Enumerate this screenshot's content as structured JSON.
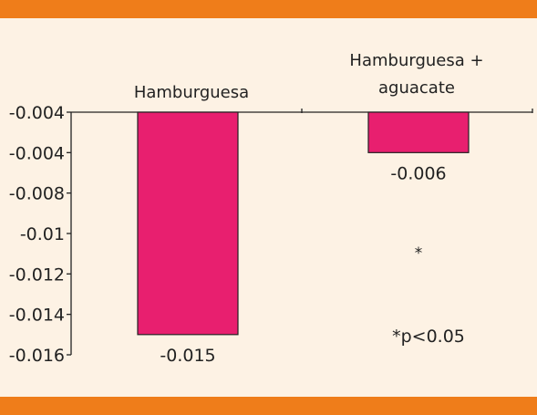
{
  "colors": {
    "band": "#ef7d1a",
    "background": "#fdf2e4",
    "bar": "#e81f6f",
    "axis": "#222222"
  },
  "chart_data": {
    "type": "bar",
    "categories": [
      {
        "name": "Hamburguesa",
        "label_lines": [
          "Hamburguesa"
        ]
      },
      {
        "name": "Hamburguesa + aguacate",
        "label_lines": [
          "Hamburguesa +",
          "aguacate"
        ]
      }
    ],
    "values": [
      -0.015,
      -0.006
    ],
    "data_labels": [
      "-0.015",
      "-0.006"
    ],
    "ytick_labels": [
      "-0.004",
      "-0.004",
      "-0.008",
      "-0.01",
      "-0.012",
      "-0.014",
      "-0.016"
    ],
    "ylim": [
      -0.016,
      -0.004
    ],
    "grid": false,
    "annotations": [
      "*",
      "*p<0.05"
    ]
  }
}
